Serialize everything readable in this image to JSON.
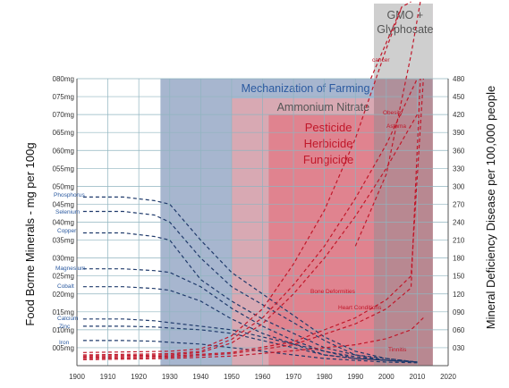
{
  "chart_data": {
    "type": "line",
    "ylabel_left": "Food Borne Minerals - mg per 100g",
    "ylabel_right": "Mineral Deficiency Disease per 100,000 people",
    "x_ticks": [
      "1900",
      "1910",
      "1920",
      "1930",
      "1940",
      "1950",
      "1960",
      "1970",
      "1980",
      "1990",
      "2000",
      "2010",
      "2020"
    ],
    "xlim": [
      1900,
      2020
    ],
    "left_ticks": [
      "005mg",
      "010mg",
      "015mg",
      "020mg",
      "025mg",
      "030mg",
      "035mg",
      "040mg",
      "045mg",
      "050mg",
      "055mg",
      "060mg",
      "065mg",
      "070mg",
      "075mg",
      "080mg"
    ],
    "ylim_left": [
      0,
      80
    ],
    "right_ticks": [
      "030",
      "060",
      "090",
      "120",
      "150",
      "180",
      "210",
      "240",
      "270",
      "300",
      "330",
      "360",
      "390",
      "420",
      "450",
      "480"
    ],
    "ylim_right": [
      0,
      480
    ],
    "bands": [
      {
        "label": "Mechanization of Farming",
        "x0": 1927,
        "x1": 2015
      },
      {
        "label": "Ammonium Nitrate",
        "x0": 1950,
        "x1": 2015
      },
      {
        "label": "Pesticide\nHerbicide\nFungicide",
        "x0": 1962,
        "x1": 2015
      },
      {
        "label": "GMO +\nGlyphosate",
        "x0": 1996,
        "x1": 2015
      }
    ],
    "mineral_series": [
      {
        "name": "Phosphorus",
        "x": [
          1902,
          1915,
          1925,
          1930,
          1940,
          1950,
          1960,
          1970,
          1980,
          1990,
          2000,
          2010
        ],
        "values": [
          47,
          47,
          46,
          45,
          35,
          26,
          20,
          14,
          8,
          4,
          2,
          1
        ]
      },
      {
        "name": "Selenium",
        "x": [
          1902,
          1915,
          1925,
          1930,
          1940,
          1950,
          1960,
          1970,
          1980,
          1990,
          2000,
          2010
        ],
        "values": [
          43,
          43,
          42,
          40,
          30,
          22,
          17,
          12,
          7,
          3,
          2,
          1
        ]
      },
      {
        "name": "Copper",
        "x": [
          1902,
          1915,
          1925,
          1930,
          1940,
          1950,
          1960,
          1970,
          1980,
          1990,
          2000,
          2010
        ],
        "values": [
          37,
          37,
          36,
          35,
          24,
          18,
          13,
          9,
          5,
          3,
          1.5,
          1
        ]
      },
      {
        "name": "Magnesium",
        "x": [
          1902,
          1915,
          1925,
          1930,
          1940,
          1950,
          1960,
          1970,
          1980,
          1990,
          2000,
          2010
        ],
        "values": [
          27,
          27,
          26.5,
          26,
          22,
          16,
          11,
          7,
          4,
          2.5,
          1.5,
          1
        ]
      },
      {
        "name": "Cobalt",
        "x": [
          1902,
          1915,
          1925,
          1930,
          1940,
          1950,
          1960,
          1970,
          1980,
          1990,
          2000,
          2010
        ],
        "values": [
          22,
          22,
          21.5,
          21,
          18,
          13,
          9,
          6,
          4,
          2,
          1.5,
          1
        ]
      },
      {
        "name": "Calcium",
        "x": [
          1902,
          1915,
          1925,
          1930,
          1940,
          1950,
          1960,
          1970,
          1980,
          1990,
          2000,
          2010
        ],
        "values": [
          13,
          13,
          12.5,
          12,
          11,
          10,
          8,
          6,
          3,
          2,
          1.5,
          1
        ]
      },
      {
        "name": "Zinc",
        "x": [
          1902,
          1915,
          1925,
          1930,
          1940,
          1950,
          1960,
          1970,
          1980,
          1990,
          2000,
          2010
        ],
        "values": [
          11,
          11,
          10.8,
          10.5,
          10,
          9,
          7,
          5,
          3,
          2,
          1.5,
          1
        ]
      },
      {
        "name": "Iron",
        "x": [
          1902,
          1915,
          1925,
          1930,
          1940,
          1950,
          1960,
          1970,
          1980,
          1990,
          2000,
          2010
        ],
        "values": [
          7,
          7,
          6.8,
          6.5,
          6,
          5,
          4,
          3,
          2,
          1.5,
          1,
          0.8
        ]
      }
    ],
    "disease_series": [
      {
        "name": "cancer",
        "x": [
          1902,
          1930,
          1940,
          1950,
          1960,
          1970,
          1980,
          1990,
          2000,
          2005
        ],
        "values": [
          22,
          24,
          28,
          50,
          95,
          170,
          260,
          380,
          530,
          600
        ]
      },
      {
        "name": "Obesity",
        "x": [
          1902,
          1930,
          1940,
          1950,
          1960,
          1970,
          1980,
          1990,
          2000,
          2010
        ],
        "values": [
          18,
          20,
          24,
          44,
          80,
          135,
          200,
          280,
          370,
          480
        ]
      },
      {
        "name": "Asthma",
        "x": [
          1902,
          1930,
          1940,
          1950,
          1960,
          1970,
          1980,
          1990,
          2000,
          2010
        ],
        "values": [
          16,
          18,
          22,
          38,
          70,
          120,
          180,
          250,
          330,
          420
        ]
      },
      {
        "name": "Bone Deformities",
        "x": [
          1902,
          1930,
          1950,
          1970,
          1990,
          2000,
          2008,
          2012
        ],
        "values": [
          14,
          16,
          22,
          40,
          80,
          110,
          150,
          480
        ]
      },
      {
        "name": "Heart Conditions",
        "x": [
          1902,
          1930,
          1950,
          1970,
          1990,
          2000,
          2008,
          2011
        ],
        "values": [
          12,
          14,
          20,
          35,
          70,
          95,
          130,
          480
        ]
      },
      {
        "name": "Tinnitis",
        "x": [
          1902,
          1930,
          1950,
          1970,
          1990,
          2000,
          2008,
          2012
        ],
        "values": [
          10,
          12,
          16,
          25,
          35,
          45,
          60,
          80
        ]
      },
      {
        "name": "",
        "x": [
          1995,
          2000,
          2005,
          2008
        ],
        "values": [
          480,
          540,
          600,
          650
        ]
      },
      {
        "name": "",
        "x": [
          1990,
          2000,
          2008,
          2011
        ],
        "values": [
          200,
          320,
          520,
          650
        ]
      }
    ],
    "grid": true,
    "colors": {
      "mineral_line": "#1f3a6b",
      "mineral_label": "#2b5aa0",
      "disease_line": "#c0182a",
      "disease_label": "#c0182a",
      "band_mechanization": "#a7b6cf",
      "band_ammonium": "#d8a9b3",
      "band_pesticide": "#e0838f",
      "band_gmo": "#b08a92",
      "band_title_blue": "#2b5aa0",
      "band_title_gray": "#555555",
      "band_title_red": "#c0182a"
    }
  }
}
